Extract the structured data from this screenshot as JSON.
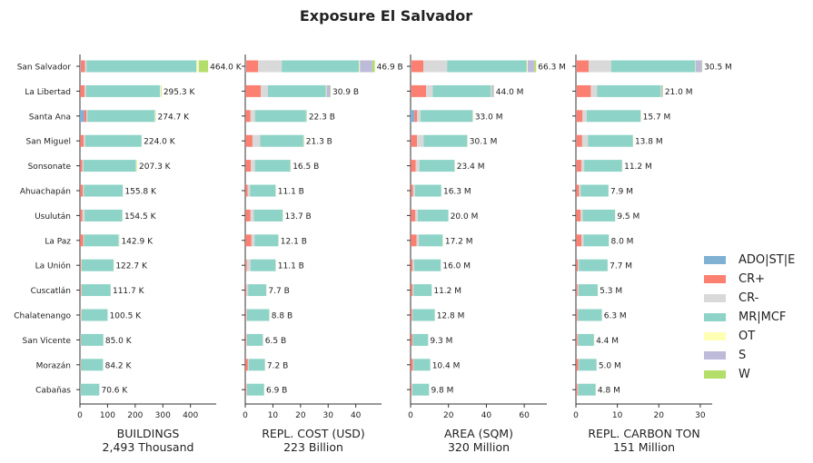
{
  "title": "Exposure El Salvador",
  "categories_order": [
    "ADO|ST|E",
    "CR+",
    "CR-",
    "MR|MCF",
    "OT",
    "S",
    "W"
  ],
  "colors": {
    "ADO|ST|E": "#80b1d3",
    "CR+": "#fb8072",
    "CR-": "#d9d9d9",
    "MR|MCF": "#8dd3c7",
    "OT": "#ffffb3",
    "S": "#bebada",
    "W": "#b3de69"
  },
  "legend": [
    "ADO|ST|E",
    "CR+",
    "CR-",
    "MR|MCF",
    "OT",
    "S",
    "W"
  ],
  "departments": [
    "San Salvador",
    "La Libertad",
    "Santa Ana",
    "San Miguel",
    "Sonsonate",
    "Ahuachapán",
    "Usulután",
    "La Paz",
    "La Unión",
    "Cuscatlán",
    "Chalatenango",
    "San Vicente",
    "Morazán",
    "Cabañas"
  ],
  "chart_data": [
    {
      "type": "bar",
      "orientation": "horizontal-stacked",
      "xlabel": "BUILDINGS",
      "total_label": "2,493 Thousand",
      "xlim": [
        0,
        480
      ],
      "xticks": [
        0,
        100,
        200,
        300,
        400
      ],
      "unit_scale": "thousand",
      "value_labels": [
        "464.0 K",
        "295.3 K",
        "274.7 K",
        "224.0 K",
        "207.3 K",
        "155.8 K",
        "154.5 K",
        "142.9 K",
        "122.7 K",
        "111.7 K",
        "100.5 K",
        "85.0 K",
        "84.2 K",
        "70.6 K"
      ],
      "rows": [
        [
          3,
          15,
          6,
          398,
          8,
          2,
          32
        ],
        [
          1,
          16,
          5,
          268,
          3,
          1,
          1.3
        ],
        [
          15,
          8,
          4,
          244,
          2.5,
          0.5,
          0.7
        ],
        [
          1,
          13,
          5,
          204,
          0.5,
          0.3,
          0.2
        ],
        [
          1,
          8,
          4,
          190,
          3,
          0.5,
          0.8
        ],
        [
          1,
          10,
          3,
          141,
          0.5,
          0.2,
          0.1
        ],
        [
          1,
          8,
          8,
          136,
          0.8,
          0.5,
          0.2
        ],
        [
          0.5,
          11,
          3,
          126,
          1.5,
          0.5,
          0.4
        ],
        [
          0.5,
          3,
          2,
          116,
          0.5,
          0.5,
          0.2
        ],
        [
          0.5,
          3,
          2,
          105.5,
          0.3,
          0.2,
          0.2
        ],
        [
          0.5,
          2,
          3,
          94.5,
          0.2,
          0.2,
          0.1
        ],
        [
          0.5,
          2,
          1,
          81,
          0.2,
          0.2,
          0.1
        ],
        [
          0.5,
          2,
          1,
          80,
          0.3,
          0.2,
          0.2
        ],
        [
          0.5,
          1,
          1,
          67.6,
          0.2,
          0.2,
          0.1
        ]
      ]
    },
    {
      "type": "bar",
      "orientation": "horizontal-stacked",
      "xlabel": "REPL. COST (USD)",
      "total_label": "223 Billion",
      "xlim": [
        0,
        48
      ],
      "xticks": [
        0,
        10,
        20,
        30,
        40
      ],
      "unit_scale": "billion",
      "value_labels": [
        "46.9 B",
        "30.9 B",
        "22.3 B",
        "21.3 B",
        "16.5 B",
        "11.1 B",
        "13.7 B",
        "12.1 B",
        "11.1 B",
        "7.7 B",
        "8.8 B",
        "6.5 B",
        "7.2 B",
        "6.9 B"
      ],
      "rows": [
        [
          0.2,
          4.5,
          8.5,
          28,
          0.3,
          4.5,
          0.9
        ],
        [
          0.1,
          5.5,
          2.6,
          21,
          0.2,
          1.3,
          0.2
        ],
        [
          0.1,
          1.8,
          1.6,
          18.5,
          0.1,
          0.1,
          0.1
        ],
        [
          0.1,
          2.5,
          2.8,
          15.6,
          0.1,
          0.1,
          0.1
        ],
        [
          0.1,
          1.9,
          1.5,
          12.8,
          0.1,
          0.05,
          0.05
        ],
        [
          0.05,
          0.8,
          0.9,
          9.2,
          0.05,
          0.05,
          0.05
        ],
        [
          0.1,
          1.8,
          1.2,
          10.4,
          0.1,
          0.05,
          0.05
        ],
        [
          0.05,
          2.2,
          1.1,
          8.6,
          0.05,
          0.05,
          0.05
        ],
        [
          0.05,
          0.5,
          1.4,
          9.0,
          0.05,
          0.05,
          0.05
        ],
        [
          0.05,
          0.3,
          0.7,
          6.5,
          0.05,
          0.05,
          0.05
        ],
        [
          0.05,
          0.3,
          0.3,
          8.0,
          0.05,
          0.05,
          0.05
        ],
        [
          0.05,
          0.3,
          0.3,
          5.7,
          0.05,
          0.05,
          0.05
        ],
        [
          0.05,
          0.9,
          0.3,
          5.8,
          0.05,
          0.05,
          0.05
        ],
        [
          0.05,
          0.3,
          0.3,
          6.1,
          0.05,
          0.05,
          0.05
        ]
      ]
    },
    {
      "type": "bar",
      "orientation": "horizontal-stacked",
      "xlabel": "AREA (SQM)",
      "total_label": "320 Million",
      "xlim": [
        0,
        70
      ],
      "xticks": [
        0,
        20,
        40,
        60
      ],
      "unit_scale": "million",
      "value_labels": [
        "66.3 M",
        "44.0 M",
        "33.0 M",
        "30.1 M",
        "23.4 M",
        "16.3 M",
        "20.0 M",
        "17.2 M",
        "16.0 M",
        "11.2 M",
        "12.8 M",
        "9.3 M",
        "10.4 M",
        "9.8 M"
      ],
      "rows": [
        [
          0.3,
          6.5,
          12.5,
          42,
          0.5,
          3.5,
          1.0
        ],
        [
          0.2,
          8.0,
          3.5,
          30.8,
          0.3,
          1.0,
          0.2
        ],
        [
          2.0,
          1.5,
          1.8,
          27.4,
          0.1,
          0.1,
          0.1
        ],
        [
          0.2,
          3.2,
          3.5,
          23.0,
          0.1,
          0.05,
          0.05
        ],
        [
          0.1,
          2.6,
          2.0,
          18.5,
          0.1,
          0.05,
          0.05
        ],
        [
          0.1,
          1.2,
          1.0,
          13.9,
          0.05,
          0.02,
          0.03
        ],
        [
          0.1,
          2.4,
          1.3,
          16.1,
          0.05,
          0.02,
          0.03
        ],
        [
          0.1,
          3.0,
          1.3,
          12.5,
          0.2,
          0.05,
          0.05
        ],
        [
          0.05,
          1.0,
          0.8,
          14.1,
          0.02,
          0.01,
          0.02
        ],
        [
          0.05,
          1.0,
          0.5,
          9.6,
          0.02,
          0.01,
          0.02
        ],
        [
          0.05,
          0.7,
          0.4,
          11.6,
          0.02,
          0.01,
          0.02
        ],
        [
          0.05,
          0.9,
          0.3,
          8.0,
          0.02,
          0.01,
          0.02
        ],
        [
          0.05,
          1.2,
          0.4,
          8.7,
          0.02,
          0.01,
          0.02
        ],
        [
          0.05,
          0.5,
          0.4,
          8.8,
          0.02,
          0.01,
          0.02
        ]
      ]
    },
    {
      "type": "bar",
      "orientation": "horizontal-stacked",
      "xlabel": "REPL. CARBON TON",
      "total_label": "151 Million",
      "xlim": [
        0,
        32
      ],
      "xticks": [
        0,
        10,
        20,
        30
      ],
      "unit_scale": "million",
      "value_labels": [
        "30.5 M",
        "21.0 M",
        "15.7 M",
        "13.8 M",
        "11.2 M",
        "7.9 M",
        "9.5 M",
        "8.0 M",
        "7.7 M",
        "5.3 M",
        "6.3 M",
        "4.4 M",
        "5.0 M",
        "4.8 M"
      ],
      "rows": [
        [
          0.1,
          3.0,
          5.4,
          20.3,
          0.1,
          1.5,
          0.1
        ],
        [
          0.1,
          3.5,
          1.5,
          15.4,
          0.1,
          0.3,
          0.1
        ],
        [
          0.1,
          1.5,
          1.0,
          13.0,
          0.03,
          0.03,
          0.04
        ],
        [
          0.1,
          1.4,
          1.4,
          10.8,
          0.03,
          0.03,
          0.04
        ],
        [
          0.1,
          1.2,
          0.7,
          9.1,
          0.03,
          0.03,
          0.04
        ],
        [
          0.05,
          0.7,
          0.4,
          6.7,
          0.02,
          0.01,
          0.02
        ],
        [
          0.05,
          1.1,
          0.5,
          7.8,
          0.02,
          0.01,
          0.02
        ],
        [
          0.05,
          1.3,
          0.5,
          6.1,
          0.02,
          0.01,
          0.02
        ],
        [
          0.05,
          0.4,
          0.3,
          6.9,
          0.02,
          0.01,
          0.02
        ],
        [
          0.05,
          0.3,
          0.3,
          4.6,
          0.02,
          0.01,
          0.02
        ],
        [
          0.05,
          0.3,
          0.2,
          5.7,
          0.02,
          0.01,
          0.02
        ],
        [
          0.05,
          0.3,
          0.2,
          3.8,
          0.02,
          0.01,
          0.02
        ],
        [
          0.05,
          0.5,
          0.2,
          4.2,
          0.02,
          0.01,
          0.02
        ],
        [
          0.05,
          0.3,
          0.2,
          4.2,
          0.02,
          0.01,
          0.02
        ]
      ]
    }
  ]
}
